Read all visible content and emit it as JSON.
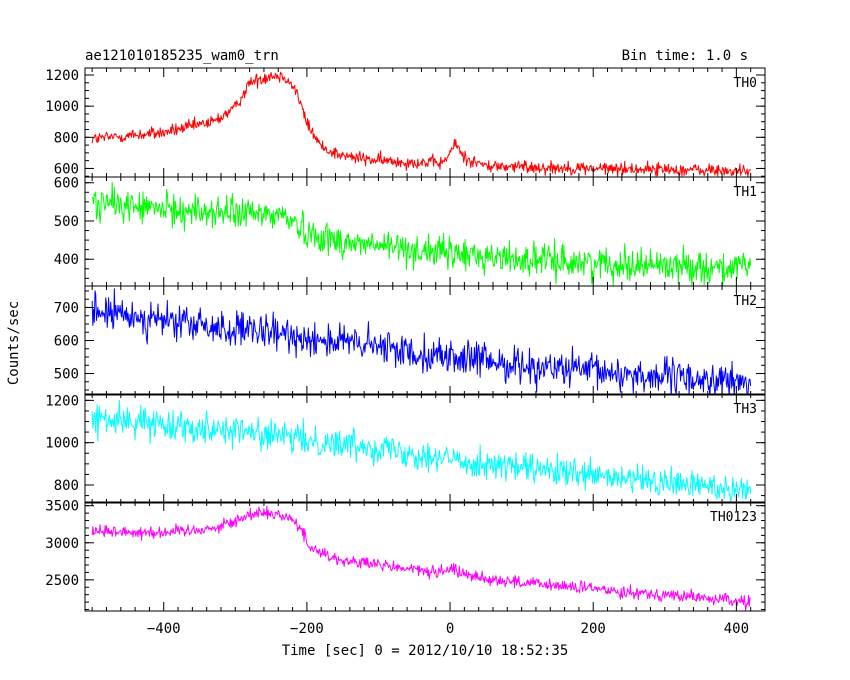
{
  "chart_data": {
    "type": "line",
    "title_left": "ae121010185235_wam0_trn",
    "title_right": "Bin time: 1.0 s",
    "xlabel": "Time [sec] 0 = 2012/10/10 18:52:35",
    "ylabel": "Counts/sec",
    "xlim": [
      -510,
      440
    ],
    "x_ticks": [
      -400,
      -200,
      0,
      200,
      400
    ],
    "x_tick_labels": [
      "−400",
      "−200",
      "0",
      "200",
      "400"
    ],
    "x_minor_step": 20,
    "x_range": [
      -500,
      420
    ],
    "grid": false,
    "panels": [
      {
        "name": "TH0",
        "color": "#ff0000",
        "ylim": [
          545,
          1245
        ],
        "y_ticks": [
          600,
          800,
          1000,
          1200
        ],
        "y_tick_labels": [
          "600",
          "800",
          "1000",
          "1200"
        ],
        "y_minor_step": 50,
        "noise": 30,
        "profile": [
          [
            -500,
            790
          ],
          [
            -400,
            830
          ],
          [
            -330,
            900
          ],
          [
            -300,
            990
          ],
          [
            -280,
            1150
          ],
          [
            -250,
            1200
          ],
          [
            -230,
            1190
          ],
          [
            -215,
            1100
          ],
          [
            -200,
            890
          ],
          [
            -180,
            740
          ],
          [
            -150,
            680
          ],
          [
            -100,
            650
          ],
          [
            -50,
            640
          ],
          [
            -10,
            635
          ],
          [
            0,
            700
          ],
          [
            8,
            760
          ],
          [
            20,
            670
          ],
          [
            50,
            615
          ],
          [
            100,
            610
          ],
          [
            200,
            600
          ],
          [
            300,
            595
          ],
          [
            420,
            580
          ]
        ]
      },
      {
        "name": "TH1",
        "color": "#00ff00",
        "ylim": [
          330,
          615
        ],
        "y_ticks": [
          400,
          500,
          600
        ],
        "y_tick_labels": [
          "400",
          "500",
          "600"
        ],
        "y_minor_step": 25,
        "noise": 30,
        "profile": [
          [
            -500,
            550
          ],
          [
            -400,
            530
          ],
          [
            -300,
            520
          ],
          [
            -230,
            515
          ],
          [
            -200,
            470
          ],
          [
            -150,
            445
          ],
          [
            -100,
            435
          ],
          [
            0,
            415
          ],
          [
            100,
            400
          ],
          [
            200,
            390
          ],
          [
            300,
            385
          ],
          [
            420,
            375
          ]
        ]
      },
      {
        "name": "TH2",
        "color": "#0000ff",
        "ylim": [
          435,
          765
        ],
        "y_ticks": [
          500,
          600,
          700
        ],
        "y_tick_labels": [
          "500",
          "600",
          "700"
        ],
        "y_minor_step": 25,
        "noise": 38,
        "profile": [
          [
            -500,
            690
          ],
          [
            -400,
            660
          ],
          [
            -300,
            630
          ],
          [
            -200,
            610
          ],
          [
            -100,
            580
          ],
          [
            0,
            550
          ],
          [
            100,
            525
          ],
          [
            200,
            505
          ],
          [
            300,
            490
          ],
          [
            420,
            470
          ]
        ]
      },
      {
        "name": "TH3",
        "color": "#00ffff",
        "ylim": [
          715,
          1230
        ],
        "y_ticks": [
          800,
          1000,
          1200
        ],
        "y_tick_labels": [
          "800",
          "1000",
          "1200"
        ],
        "y_minor_step": 50,
        "noise": 50,
        "profile": [
          [
            -500,
            1110
          ],
          [
            -400,
            1090
          ],
          [
            -300,
            1060
          ],
          [
            -200,
            1010
          ],
          [
            -100,
            980
          ],
          [
            0,
            920
          ],
          [
            100,
            880
          ],
          [
            200,
            840
          ],
          [
            300,
            810
          ],
          [
            420,
            780
          ]
        ]
      },
      {
        "name": "TH0123",
        "color": "#ff00ff",
        "ylim": [
          2080,
          3550
        ],
        "y_ticks": [
          2500,
          3000,
          3500
        ],
        "y_tick_labels": [
          "2500",
          "3000",
          "3500"
        ],
        "y_minor_step": 100,
        "noise": 60,
        "profile": [
          [
            -500,
            3160
          ],
          [
            -400,
            3140
          ],
          [
            -330,
            3200
          ],
          [
            -300,
            3290
          ],
          [
            -270,
            3420
          ],
          [
            -250,
            3400
          ],
          [
            -225,
            3350
          ],
          [
            -210,
            3200
          ],
          [
            -195,
            2950
          ],
          [
            -170,
            2820
          ],
          [
            -150,
            2760
          ],
          [
            -100,
            2700
          ],
          [
            -50,
            2640
          ],
          [
            -10,
            2590
          ],
          [
            5,
            2660
          ],
          [
            20,
            2580
          ],
          [
            50,
            2520
          ],
          [
            100,
            2460
          ],
          [
            200,
            2380
          ],
          [
            300,
            2300
          ],
          [
            420,
            2200
          ]
        ]
      }
    ]
  }
}
